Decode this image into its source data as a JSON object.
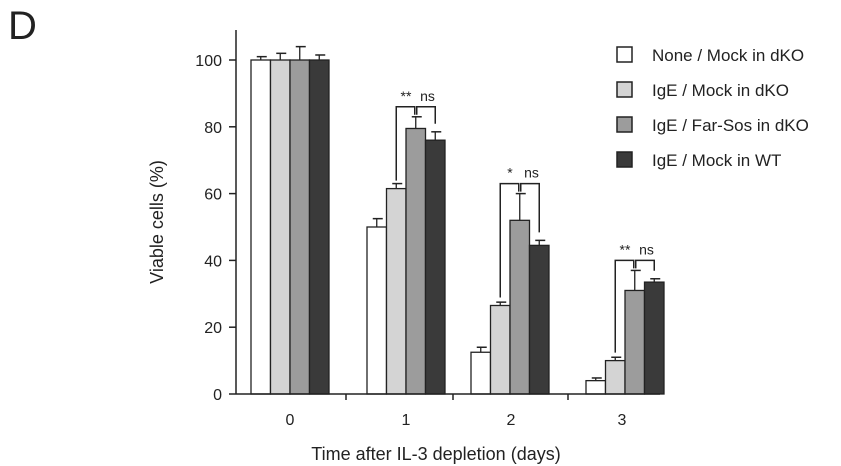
{
  "panel_label": "D",
  "chart_data": {
    "type": "bar",
    "categories": [
      "0",
      "1",
      "2",
      "3"
    ],
    "xlabel": "Time after IL-3 depletion (days)",
    "ylabel": "Viable cells (%)",
    "ylim": [
      0,
      100
    ],
    "yticks": [
      0,
      20,
      40,
      60,
      80,
      100
    ],
    "grid": false,
    "legend_position": "top-right",
    "series": [
      {
        "name": "None / Mock in dKO",
        "color": "#ffffff",
        "values": [
          100,
          50,
          12.5,
          4
        ],
        "errors": [
          1,
          2.5,
          1.5,
          0.8
        ]
      },
      {
        "name": "IgE / Mock in dKO",
        "color": "#d4d4d4",
        "values": [
          100,
          61.5,
          26.5,
          10
        ],
        "errors": [
          2,
          1.5,
          1,
          1
        ]
      },
      {
        "name": "IgE / Far-Sos in dKO",
        "color": "#9c9c9c",
        "values": [
          100,
          79.5,
          52,
          31
        ],
        "errors": [
          4,
          3.5,
          8,
          6
        ]
      },
      {
        "name": "IgE / Mock in WT",
        "color": "#3a3a3a",
        "values": [
          100,
          76,
          44.5,
          33.5
        ],
        "errors": [
          1.5,
          2.5,
          1.5,
          1
        ]
      }
    ],
    "significance": [
      {
        "category": "1",
        "labels": [
          "**",
          "ns"
        ]
      },
      {
        "category": "2",
        "labels": [
          "*",
          "ns"
        ]
      },
      {
        "category": "3",
        "labels": [
          "**",
          "ns"
        ]
      }
    ]
  }
}
